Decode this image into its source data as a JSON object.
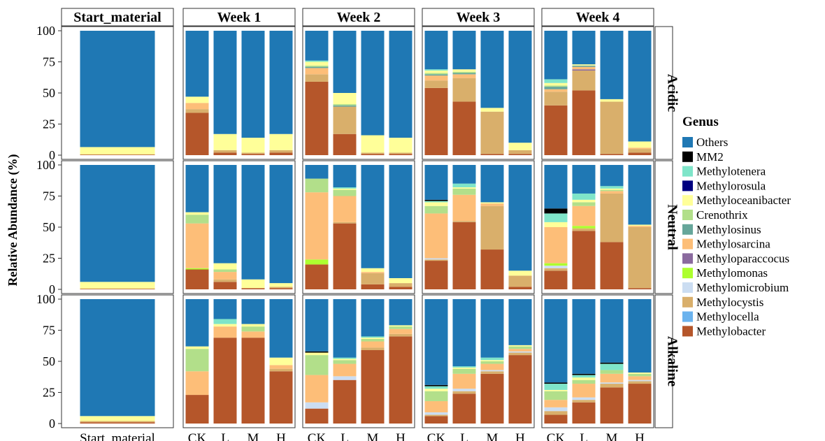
{
  "chart_data": {
    "type": "bar",
    "stacked": true,
    "ylabel": "Relative Abundance (%)",
    "ylim": [
      0,
      100
    ],
    "yticks": [
      0,
      25,
      50,
      75,
      100
    ],
    "grid": false,
    "legend_position": "right",
    "legend_title": "Genus",
    "columns": [
      "Start_material",
      "Week 1",
      "Week 2",
      "Week 3",
      "Week 4"
    ],
    "rows": [
      "Acidic",
      "Neutral",
      "Alkaline"
    ],
    "genera": [
      {
        "name": "Methylobacter",
        "color": "#B5562A"
      },
      {
        "name": "Methylocella",
        "color": "#6BB3EE"
      },
      {
        "name": "Methylocystis",
        "color": "#D9AF6B"
      },
      {
        "name": "Methylomicrobium",
        "color": "#CBDDF2"
      },
      {
        "name": "Methylomonas",
        "color": "#ADFF2F"
      },
      {
        "name": "Methyloparaccocus",
        "color": "#8A6A9E"
      },
      {
        "name": "Methylosarcina",
        "color": "#FDBE78"
      },
      {
        "name": "Methylosinus",
        "color": "#66A69A"
      },
      {
        "name": "Crenothrix",
        "color": "#B2DF8A"
      },
      {
        "name": "Methyloceanibacter",
        "color": "#FFFF99"
      },
      {
        "name": "Methylorosula",
        "color": "#000080"
      },
      {
        "name": "Methylotenera",
        "color": "#7FE5C9"
      },
      {
        "name": "MM2",
        "color": "#000000"
      },
      {
        "name": "Others",
        "color": "#1F78B4"
      }
    ],
    "stack_order": [
      "Methylobacter",
      "Methylocella",
      "Methylocystis",
      "Methylomicrobium",
      "Methylomonas",
      "Methyloparaccocus",
      "Methylosarcina",
      "Methylosinus",
      "Crenothrix",
      "Methyloceanibacter",
      "Methylorosula",
      "Methylotenera",
      "MM2"
    ],
    "panels": [
      {
        "row": "Acidic",
        "column": "Start_material",
        "bars": [
          {
            "label": "Start_material",
            "values": {
              "Methylobacter": 0.5,
              "Methyloceanibacter": 6
            }
          }
        ]
      },
      {
        "row": "Acidic",
        "column": "Week 1",
        "bars": [
          {
            "label": "CK",
            "values": {
              "Methylobacter": 34,
              "Methylocystis": 3,
              "Methylosarcina": 5,
              "Methyloceanibacter": 5
            }
          },
          {
            "label": "L",
            "values": {
              "Methylobacter": 2,
              "Methylocystis": 2,
              "Methyloceanibacter": 13
            }
          },
          {
            "label": "M",
            "values": {
              "Methylobacter": 1,
              "Methylocystis": 1,
              "Methyloceanibacter": 12
            }
          },
          {
            "label": "H",
            "values": {
              "Methylobacter": 2,
              "Methylocystis": 2,
              "Methyloceanibacter": 13
            }
          }
        ]
      },
      {
        "row": "Acidic",
        "column": "Week 2",
        "bars": [
          {
            "label": "CK",
            "values": {
              "Methylobacter": 59,
              "Methylocystis": 6,
              "Methylosarcina": 5,
              "Methylosinus": 1,
              "Crenothrix": 1,
              "Methyloceanibacter": 3,
              "Methylotenera": 1
            }
          },
          {
            "label": "L",
            "values": {
              "Methylobacter": 17,
              "Methylocystis": 22,
              "Crenothrix": 1,
              "Methylosinus": 1,
              "Methyloceanibacter": 9
            }
          },
          {
            "label": "M",
            "values": {
              "Methylobacter": 1,
              "Methylocystis": 1,
              "Methyloceanibacter": 14
            }
          },
          {
            "label": "H",
            "values": {
              "Methylobacter": 1,
              "Methylocystis": 1,
              "Methyloceanibacter": 12
            }
          }
        ]
      },
      {
        "row": "Acidic",
        "column": "Week 3",
        "bars": [
          {
            "label": "CK",
            "values": {
              "Methylobacter": 54,
              "Methylocystis": 6,
              "Methylosarcina": 4,
              "Methylosinus": 1,
              "Crenothrix": 1,
              "Methyloceanibacter": 2,
              "Methylotenera": 1
            }
          },
          {
            "label": "L",
            "values": {
              "Methylobacter": 43,
              "Methylocystis": 19,
              "Methylosarcina": 3,
              "Methylosinus": 1,
              "Crenothrix": 1,
              "Methyloceanibacter": 2
            }
          },
          {
            "label": "M",
            "values": {
              "Methylobacter": 1,
              "Methylocystis": 34,
              "Methyloceanibacter": 3
            }
          },
          {
            "label": "H",
            "values": {
              "Methylobacter": 1,
              "Methylocystis": 3,
              "Methyloceanibacter": 6
            }
          }
        ]
      },
      {
        "row": "Acidic",
        "column": "Week 4",
        "bars": [
          {
            "label": "CK",
            "values": {
              "Methylobacter": 40,
              "Methylocystis": 11,
              "Methylosarcina": 2,
              "Methylosinus": 2,
              "Crenothrix": 1,
              "Methyloceanibacter": 2,
              "Methylotenera": 3
            }
          },
          {
            "label": "L",
            "values": {
              "Methylobacter": 52,
              "Methylocystis": 16,
              "Methylosarcina": 2,
              "Methylosinus": 1,
              "Methyloparaccocus": 1,
              "Methyloceanibacter": 1
            }
          },
          {
            "label": "M",
            "values": {
              "Methylobacter": 1,
              "Methylocystis": 42,
              "Methyloceanibacter": 2
            }
          },
          {
            "label": "H",
            "values": {
              "Methylobacter": 2,
              "Methylocystis": 3,
              "Methylosarcina": 1,
              "Methyloceanibacter": 5
            }
          }
        ]
      },
      {
        "row": "Neutral",
        "column": "Start_material",
        "bars": [
          {
            "label": "Start_material",
            "values": {
              "Methylobacter": 0.5,
              "Methyloceanibacter": 5.5
            }
          }
        ]
      },
      {
        "row": "Neutral",
        "column": "Week 1",
        "bars": [
          {
            "label": "CK",
            "values": {
              "Methylobacter": 16,
              "Methylomonas": 1,
              "Methylosarcina": 36,
              "Crenothrix": 7,
              "Methyloceanibacter": 2
            }
          },
          {
            "label": "L",
            "values": {
              "Methylobacter": 6,
              "Methylocystis": 2,
              "Methylosarcina": 6,
              "Crenothrix": 2,
              "Methyloceanibacter": 5
            }
          },
          {
            "label": "M",
            "values": {
              "Methylobacter": 1,
              "Methyloceanibacter": 7
            }
          },
          {
            "label": "H",
            "values": {
              "Methylobacter": 1,
              "Methylocystis": 1,
              "Methyloceanibacter": 3
            }
          }
        ]
      },
      {
        "row": "Neutral",
        "column": "Week 2",
        "bars": [
          {
            "label": "CK",
            "values": {
              "Methylobacter": 20,
              "Methylomonas": 4,
              "Methylosarcina": 54,
              "Crenothrix": 11
            }
          },
          {
            "label": "L",
            "values": {
              "Methylobacter": 53,
              "Methylocystis": 1,
              "Methylosarcina": 21,
              "Crenothrix": 5,
              "Methyloceanibacter": 1,
              "Methylotenera": 1
            }
          },
          {
            "label": "M",
            "values": {
              "Methylobacter": 4,
              "Methylocystis": 9,
              "Methylosarcina": 1,
              "Methyloceanibacter": 3
            }
          },
          {
            "label": "H",
            "values": {
              "Methylobacter": 2,
              "Methylocystis": 3,
              "Methyloceanibacter": 4
            }
          }
        ]
      },
      {
        "row": "Neutral",
        "column": "Week 3",
        "bars": [
          {
            "label": "CK",
            "values": {
              "Methylobacter": 23,
              "Methylocystis": 1,
              "Methylomicrobium": 1,
              "Methylosarcina": 36,
              "Crenothrix": 6,
              "Methyloceanibacter": 3,
              "Methylotenera": 1,
              "MM2": 1
            }
          },
          {
            "label": "L",
            "values": {
              "Methylobacter": 54,
              "Methylocystis": 1,
              "Methylosarcina": 21,
              "Crenothrix": 5,
              "Methyloceanibacter": 1,
              "Methylotenera": 3
            }
          },
          {
            "label": "M",
            "values": {
              "Methylobacter": 32,
              "Methylocystis": 35,
              "Methylosarcina": 2,
              "Methyloceanibacter": 1
            }
          },
          {
            "label": "H",
            "values": {
              "Methylobacter": 2,
              "Methylocystis": 9,
              "Methyloceanibacter": 4
            }
          }
        ]
      },
      {
        "row": "Neutral",
        "column": "Week 4",
        "bars": [
          {
            "label": "CK",
            "values": {
              "Methylobacter": 15,
              "Methylocystis": 2,
              "Methylomicrobium": 2,
              "Methylomonas": 2,
              "Methylosarcina": 29,
              "Methyloceanibacter": 4,
              "Methylotenera": 7,
              "MM2": 4
            }
          },
          {
            "label": "L",
            "values": {
              "Methylobacter": 47,
              "Methylocystis": 2,
              "Methylomonas": 2,
              "Methylosarcina": 16,
              "Crenothrix": 3,
              "Methyloceanibacter": 2,
              "Methylotenera": 5
            }
          },
          {
            "label": "M",
            "values": {
              "Methylobacter": 38,
              "Methylocystis": 39,
              "Methylosarcina": 2,
              "Crenothrix": 1,
              "Methyloceanibacter": 1,
              "Methylotenera": 2
            }
          },
          {
            "label": "H",
            "values": {
              "Methylobacter": 1,
              "Methylocystis": 49,
              "Methylosarcina": 1,
              "Methyloceanibacter": 1
            }
          }
        ]
      },
      {
        "row": "Alkaline",
        "column": "Start_material",
        "bars": [
          {
            "label": "Start_material",
            "values": {
              "Methylobacter": 1,
              "Methylocystis": 1,
              "Methyloceanibacter": 4
            }
          }
        ]
      },
      {
        "row": "Alkaline",
        "column": "Week 1",
        "bars": [
          {
            "label": "CK",
            "values": {
              "Methylobacter": 23,
              "Methylosarcina": 19,
              "Crenothrix": 18,
              "Methyloceanibacter": 2
            }
          },
          {
            "label": "L",
            "values": {
              "Methylobacter": 69,
              "Methylosarcina": 9,
              "Methyloceanibacter": 2,
              "Methylotenera": 4
            }
          },
          {
            "label": "M",
            "values": {
              "Methylobacter": 69,
              "Methylosarcina": 5,
              "Crenothrix": 4,
              "Methyloceanibacter": 2
            }
          },
          {
            "label": "H",
            "values": {
              "Methylobacter": 42,
              "Methylocystis": 2,
              "Methylosarcina": 3,
              "Methyloceanibacter": 6
            }
          }
        ]
      },
      {
        "row": "Alkaline",
        "column": "Week 2",
        "bars": [
          {
            "label": "CK",
            "values": {
              "Methylobacter": 12,
              "Methylomicrobium": 5,
              "Methylosarcina": 22,
              "Crenothrix": 16,
              "Methyloceanibacter": 2,
              "MM2": 1
            }
          },
          {
            "label": "L",
            "values": {
              "Methylobacter": 35,
              "Methylomicrobium": 3,
              "Methylosarcina": 10,
              "Crenothrix": 3,
              "Methyloceanibacter": 1,
              "Methylotenera": 1
            }
          },
          {
            "label": "M",
            "values": {
              "Methylobacter": 59,
              "Methylocystis": 2,
              "Methylosarcina": 5,
              "Crenothrix": 2,
              "Methyloceanibacter": 1,
              "Methylotenera": 1
            }
          },
          {
            "label": "H",
            "values": {
              "Methylobacter": 70,
              "Methylocystis": 2,
              "Methylosarcina": 4,
              "Crenothrix": 2,
              "Methyloceanibacter": 1
            }
          }
        ]
      },
      {
        "row": "Alkaline",
        "column": "Week 3",
        "bars": [
          {
            "label": "CK",
            "values": {
              "Methylobacter": 6,
              "Methylocystis": 1,
              "Methylomicrobium": 2,
              "Methylosarcina": 9,
              "Crenothrix": 8,
              "Methyloceanibacter": 2,
              "Methylotenera": 2,
              "MM2": 1
            }
          },
          {
            "label": "L",
            "values": {
              "Methylobacter": 24,
              "Methylocystis": 2,
              "Methylomicrobium": 2,
              "Methylosarcina": 12,
              "Crenothrix": 4,
              "Methyloceanibacter": 1,
              "Methylotenera": 1
            }
          },
          {
            "label": "M",
            "values": {
              "Methylobacter": 40,
              "Methylocystis": 2,
              "Methylomicrobium": 1,
              "Methylosarcina": 5,
              "Crenothrix": 2,
              "Methyloceanibacter": 1,
              "Methylotenera": 2
            }
          },
          {
            "label": "H",
            "values": {
              "Methylobacter": 55,
              "Methylocystis": 2,
              "Methylomicrobium": 1,
              "Methylosarcina": 2,
              "Crenothrix": 2,
              "Methyloceanibacter": 1
            }
          }
        ]
      },
      {
        "row": "Alkaline",
        "column": "Week 4",
        "bars": [
          {
            "label": "CK",
            "values": {
              "Methylobacter": 7,
              "Methylocystis": 3,
              "Methylomicrobium": 3,
              "Methylosarcina": 6,
              "Crenothrix": 7,
              "Methyloceanibacter": 1,
              "Methylotenera": 5,
              "MM2": 1
            }
          },
          {
            "label": "L",
            "values": {
              "Methylobacter": 17,
              "Methylocystis": 2,
              "Methylomicrobium": 2,
              "Methylosarcina": 11,
              "Crenothrix": 3,
              "Methyloceanibacter": 2,
              "Methylotenera": 2,
              "MM2": 1
            }
          },
          {
            "label": "M",
            "values": {
              "Methylobacter": 29,
              "Methylocystis": 3,
              "Methylomicrobium": 1,
              "Methylosarcina": 7,
              "Crenothrix": 3,
              "Methylotenera": 5,
              "MM2": 1
            }
          },
          {
            "label": "H",
            "values": {
              "Methylobacter": 32,
              "Methylocystis": 2,
              "Methylomicrobium": 1,
              "Methylosarcina": 3,
              "Crenothrix": 2,
              "Methyloceanibacter": 1
            }
          }
        ]
      }
    ]
  }
}
